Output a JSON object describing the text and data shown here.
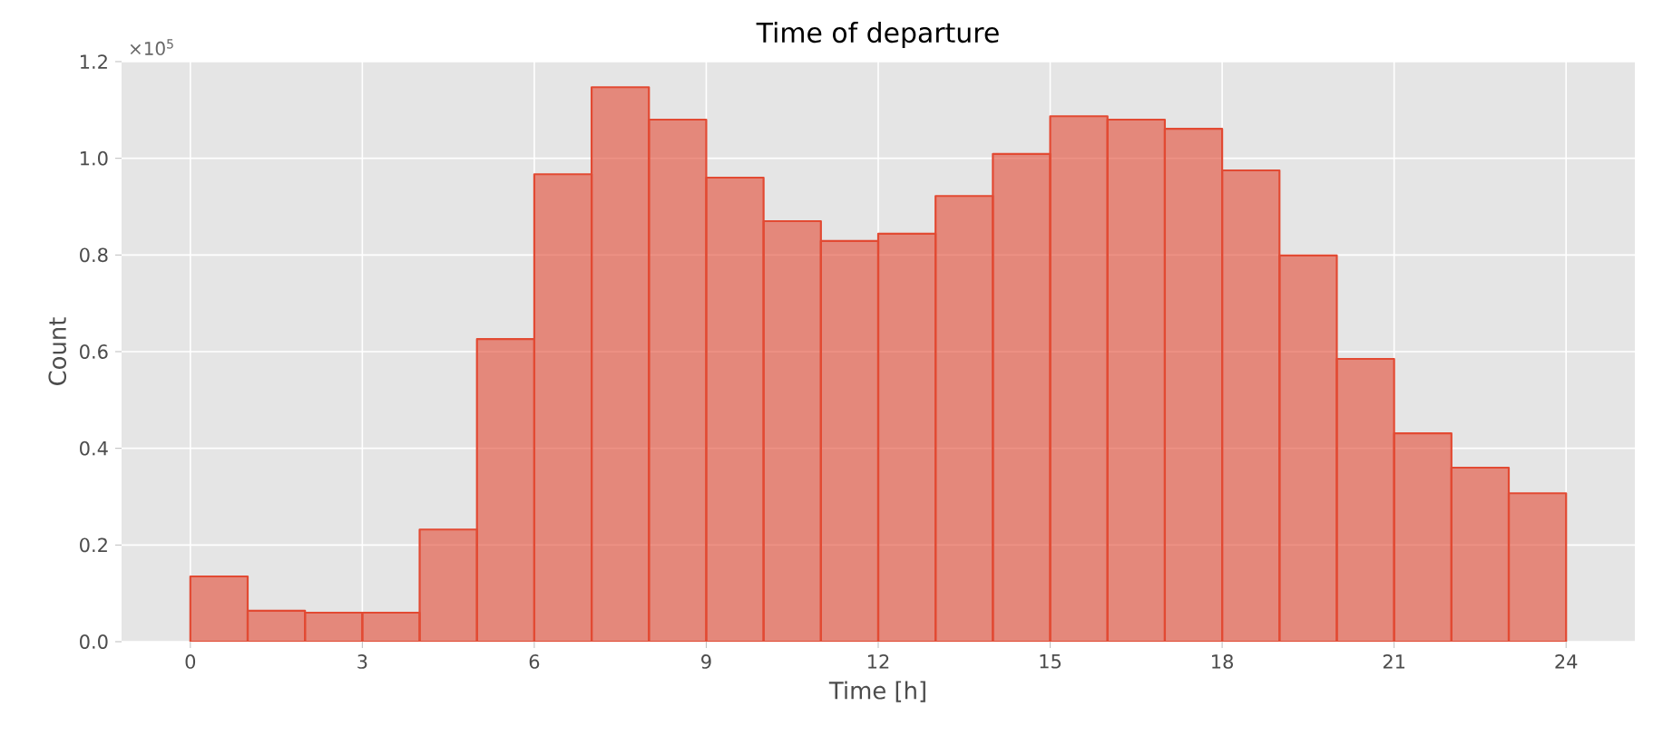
{
  "chart_data": {
    "type": "histogram",
    "title": "Time of departure",
    "xlabel": "Time [h]",
    "ylabel": "Count",
    "bins": [
      0,
      1,
      2,
      3,
      4,
      5,
      6,
      7,
      8,
      9,
      10,
      11,
      12,
      13,
      14,
      15,
      16,
      17,
      18,
      19,
      20,
      21,
      22,
      23,
      24
    ],
    "values": [
      0.135,
      0.064,
      0.06,
      0.06,
      0.232,
      0.626,
      0.967,
      1.147,
      1.08,
      0.96,
      0.87,
      0.829,
      0.844,
      0.922,
      1.009,
      1.087,
      1.08,
      1.061,
      0.975,
      0.799,
      0.585,
      0.431,
      0.36,
      0.307
    ],
    "color": "#e24a33",
    "xlim": [
      -1.2,
      25.2
    ],
    "xticks": [
      0,
      3,
      6,
      9,
      12,
      15,
      18,
      21,
      24
    ],
    "ylim": [
      0,
      1.2
    ],
    "yticks": [
      {
        "value": 0,
        "label": "0.0"
      },
      {
        "value": 0.2,
        "label": "0.2"
      },
      {
        "value": 0.4,
        "label": "0.4"
      },
      {
        "value": 0.6,
        "label": "0.6"
      },
      {
        "value": 0.8,
        "label": "0.8"
      },
      {
        "value": 1.0,
        "label": "1.0"
      },
      {
        "value": 1.2,
        "label": "1.2"
      }
    ],
    "annotations": [
      "×10$^{5}$"
    ],
    "grid": true
  }
}
